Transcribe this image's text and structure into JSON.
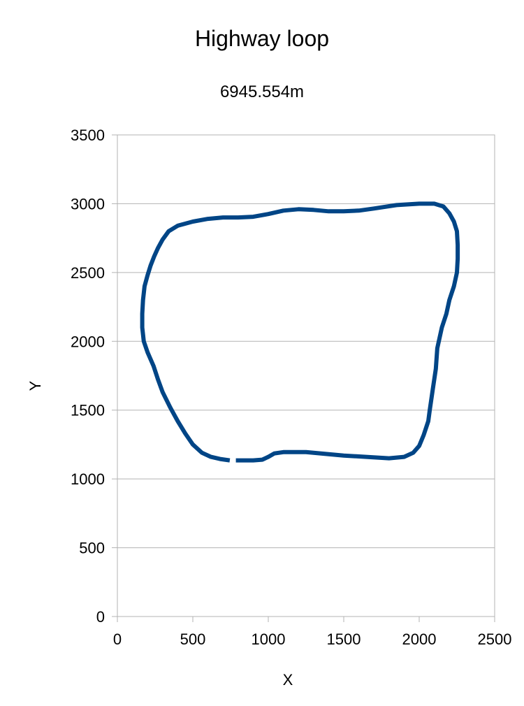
{
  "chart_data": {
    "type": "line",
    "title": "Highway loop",
    "subtitle": "6945.554m",
    "xlabel": "X",
    "ylabel": "Y",
    "xlim": [
      0,
      2500
    ],
    "ylim": [
      0,
      3500
    ],
    "xticks": [
      0,
      500,
      1000,
      1500,
      2000,
      2500
    ],
    "yticks": [
      0,
      500,
      1000,
      1500,
      2000,
      2500,
      3000,
      3500
    ],
    "grid": {
      "horizontal": true,
      "vertical": false
    },
    "series": [
      {
        "color": "#004586",
        "points": [
          [
            785,
            1135
          ],
          [
            900,
            1135
          ],
          [
            960,
            1140
          ],
          [
            1000,
            1160
          ],
          [
            1040,
            1185
          ],
          [
            1100,
            1195
          ],
          [
            1250,
            1195
          ],
          [
            1500,
            1170
          ],
          [
            1800,
            1150
          ],
          [
            1900,
            1160
          ],
          [
            1960,
            1190
          ],
          [
            2000,
            1240
          ],
          [
            2030,
            1320
          ],
          [
            2060,
            1420
          ],
          [
            2070,
            1500
          ],
          [
            2090,
            1650
          ],
          [
            2110,
            1800
          ],
          [
            2120,
            1950
          ],
          [
            2150,
            2100
          ],
          [
            2180,
            2200
          ],
          [
            2200,
            2300
          ],
          [
            2230,
            2400
          ],
          [
            2250,
            2500
          ],
          [
            2255,
            2600
          ],
          [
            2255,
            2700
          ],
          [
            2250,
            2800
          ],
          [
            2230,
            2870
          ],
          [
            2200,
            2930
          ],
          [
            2160,
            2980
          ],
          [
            2100,
            3000
          ],
          [
            2000,
            3000
          ],
          [
            1850,
            2990
          ],
          [
            1700,
            2965
          ],
          [
            1600,
            2950
          ],
          [
            1500,
            2945
          ],
          [
            1400,
            2945
          ],
          [
            1300,
            2955
          ],
          [
            1200,
            2960
          ],
          [
            1100,
            2950
          ],
          [
            1000,
            2925
          ],
          [
            900,
            2905
          ],
          [
            800,
            2900
          ],
          [
            700,
            2900
          ],
          [
            600,
            2890
          ],
          [
            500,
            2870
          ],
          [
            400,
            2840
          ],
          [
            340,
            2800
          ],
          [
            300,
            2740
          ],
          [
            270,
            2680
          ],
          [
            245,
            2620
          ],
          [
            220,
            2550
          ],
          [
            200,
            2480
          ],
          [
            180,
            2400
          ],
          [
            170,
            2300
          ],
          [
            165,
            2200
          ],
          [
            165,
            2100
          ],
          [
            175,
            2000
          ],
          [
            200,
            1920
          ],
          [
            240,
            1820
          ],
          [
            270,
            1720
          ],
          [
            300,
            1630
          ],
          [
            350,
            1520
          ],
          [
            400,
            1420
          ],
          [
            450,
            1330
          ],
          [
            500,
            1250
          ],
          [
            560,
            1190
          ],
          [
            620,
            1160
          ],
          [
            680,
            1145
          ],
          [
            745,
            1135
          ]
        ]
      }
    ]
  }
}
